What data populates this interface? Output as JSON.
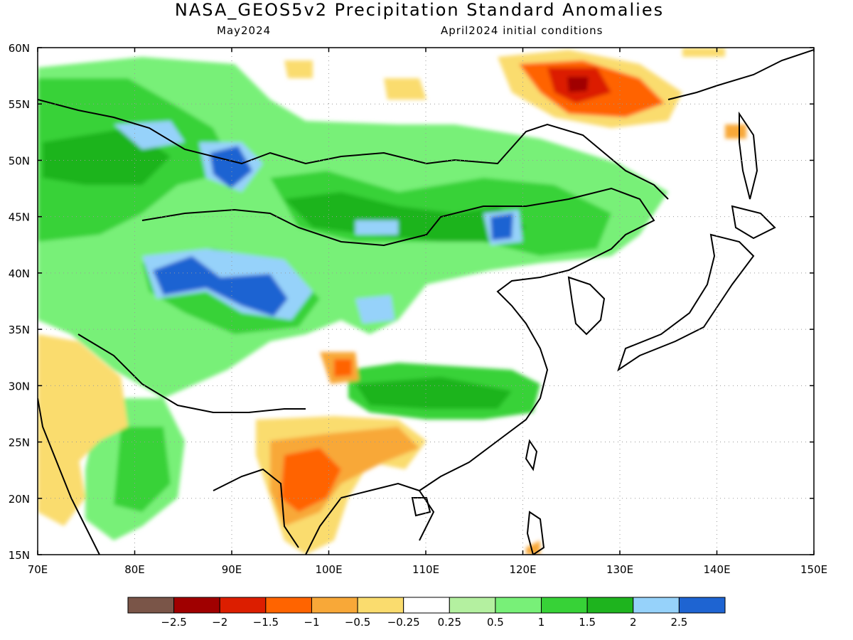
{
  "title": "NASA_GEOS5v2 Precipitation Standard Anomalies",
  "subtitle_left": "May2024",
  "subtitle_right": "April2024 initial conditions",
  "map": {
    "lon_range": [
      70,
      150
    ],
    "lat_range": [
      15,
      60
    ],
    "lon_ticks": [
      "70E",
      "80E",
      "90E",
      "100E",
      "110E",
      "120E",
      "130E",
      "140E",
      "150E"
    ],
    "lat_ticks": [
      "15N",
      "20N",
      "25N",
      "30N",
      "35N",
      "40N",
      "45N",
      "50N",
      "55N",
      "60N"
    ],
    "grid": "dotted"
  },
  "anomaly_regions": [
    {
      "name": "western-siberia-kazakhstan-wet",
      "level": 1.5,
      "color": "#2db82d"
    },
    {
      "name": "mongolia-northern-china-wet",
      "level": 1.5,
      "color": "#2db82d"
    },
    {
      "name": "tarim-basin-very-wet",
      "level": 2.5,
      "color": "#1e64d2"
    },
    {
      "name": "altai-very-wet",
      "level": 2.5,
      "color": "#1e64d2"
    },
    {
      "name": "mongolia-very-wet",
      "level": 2.5,
      "color": "#1e64d2"
    },
    {
      "name": "southern-china-wet",
      "level": 1.5,
      "color": "#2db82d"
    },
    {
      "name": "indochina-dry",
      "level": -1.5,
      "color": "#ff6400"
    },
    {
      "name": "amur-manchuria-dry",
      "level": -2.5,
      "color": "#a00000"
    },
    {
      "name": "sichuan-dry",
      "level": -1.5,
      "color": "#ff6400"
    },
    {
      "name": "india-west-dry",
      "level": -0.5,
      "color": "#fadc6e"
    }
  ],
  "legend": {
    "colors": [
      "#7a5548",
      "#a00000",
      "#dc1e00",
      "#ff6400",
      "#f8a838",
      "#fadc6e",
      "#ffffff",
      "#b4f0a0",
      "#78f078",
      "#37d237",
      "#1eb41e",
      "#96d2fa",
      "#1e64d2"
    ],
    "labels": [
      "−2.5",
      "−2",
      "−1.5",
      "−1",
      "−0.5",
      "−0.25",
      "0.25",
      "0.5",
      "1",
      "1.5",
      "2",
      "2.5"
    ]
  }
}
